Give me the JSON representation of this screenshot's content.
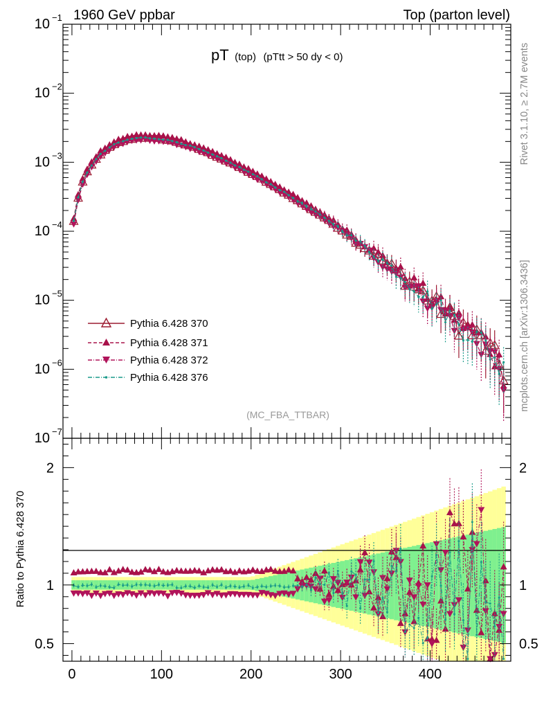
{
  "header": {
    "left": "1960 GeV ppbar",
    "right": "Top (parton level)"
  },
  "side_labels": {
    "rivet": "Rivet 3.1.10, ≥ 2.7M events",
    "mcplots": "mcplots.cern.ch [arXiv:1306.3436]"
  },
  "plot_title": {
    "main": "pT",
    "sub1": "(top)",
    "sub2": "(pTtt > 50 dy < 0)"
  },
  "analysis_tag": "(MC_FBA_TTBAR)",
  "ratio_ylabel": "Ratio to Pythia 6.428 370",
  "colors": {
    "series_370": "#9b1b30",
    "series_371": "#a8124a",
    "series_372": "#b0135a",
    "series_376": "#1a9a8a",
    "band_inner": "#7ff08f",
    "band_outer": "#ffff99"
  },
  "chart_data": [
    {
      "type": "line",
      "y_scale": "log",
      "xlim": [
        -10,
        490
      ],
      "ylim": [
        1e-07,
        0.1
      ],
      "x_ticks": [
        "0",
        "100",
        "200",
        "300",
        "400"
      ],
      "y_ticks": [
        "10^-7",
        "10^-6",
        "10^-5",
        "10^-4",
        "10^-3",
        "10^-2",
        "10^-1"
      ],
      "legend_position": "bottom-left",
      "series": [
        {
          "name": "Pythia 6.428 370",
          "marker": "open-triangle-up",
          "line": "solid"
        },
        {
          "name": "Pythia 6.428 371",
          "marker": "filled-triangle-up",
          "line": "dashed"
        },
        {
          "name": "Pythia 6.428 372",
          "marker": "filled-triangle-down",
          "line": "dash-dot"
        },
        {
          "name": "Pythia 6.428 376",
          "marker": "dot",
          "line": "dash-dot"
        }
      ],
      "shape_points": {
        "x": [
          2,
          5,
          10,
          15,
          20,
          30,
          40,
          50,
          60,
          70,
          80,
          90,
          100,
          120,
          140,
          160,
          180,
          200,
          220,
          240,
          260,
          280,
          300,
          320,
          340,
          360,
          380,
          400,
          420,
          440,
          460,
          470,
          480
        ],
        "y": [
          0.00014,
          0.00024,
          0.00045,
          0.00065,
          0.00085,
          0.00125,
          0.0016,
          0.0019,
          0.0021,
          0.00225,
          0.0023,
          0.00225,
          0.0022,
          0.00195,
          0.0016,
          0.00125,
          0.00095,
          0.0007,
          0.0005,
          0.00035,
          0.00024,
          0.000165,
          0.00011,
          7e-05,
          4.5e-05,
          2.8e-05,
          1.7e-05,
          1.05e-05,
          6.5e-06,
          4e-06,
          2.5e-06,
          1.7e-06,
          1e-06
        ]
      },
      "sample_x": [
        2,
        7,
        12,
        17,
        22,
        27,
        32,
        37,
        42,
        47,
        52,
        57,
        62,
        67,
        72,
        77,
        82,
        87,
        92,
        97,
        102,
        107,
        112,
        117,
        122,
        127,
        132,
        137,
        142,
        147,
        152,
        157,
        162,
        167,
        172,
        177,
        182,
        187,
        192,
        197,
        202,
        207,
        212,
        217,
        222,
        227,
        232,
        237,
        242,
        247,
        252,
        257,
        262,
        267,
        272,
        277,
        282,
        287,
        292,
        297,
        302,
        307,
        312,
        317,
        322,
        327,
        332,
        337,
        342,
        347,
        352,
        357,
        362,
        367,
        372,
        377,
        382,
        387,
        392,
        397,
        402,
        407,
        412,
        417,
        422,
        427,
        432,
        437,
        442,
        447,
        452,
        457,
        462,
        467,
        472,
        477,
        482
      ]
    },
    {
      "type": "line",
      "y_scale": "linear",
      "xlim": [
        -10,
        490
      ],
      "ylim": [
        0.35,
        2.25
      ],
      "x_ticks": [
        "0",
        "100",
        "200",
        "300",
        "400"
      ],
      "y_ticks": [
        "0.5",
        "1",
        "2"
      ],
      "ylabel": "Ratio to Pythia 6.428 370",
      "reference_line": 1,
      "series_ratio": [
        {
          "name": "Pythia 6.428 371",
          "level": 1.12
        },
        {
          "name": "Pythia 6.428 372",
          "level": 0.92
        },
        {
          "name": "Pythia 6.428 376",
          "level": 0.99
        }
      ]
    }
  ]
}
